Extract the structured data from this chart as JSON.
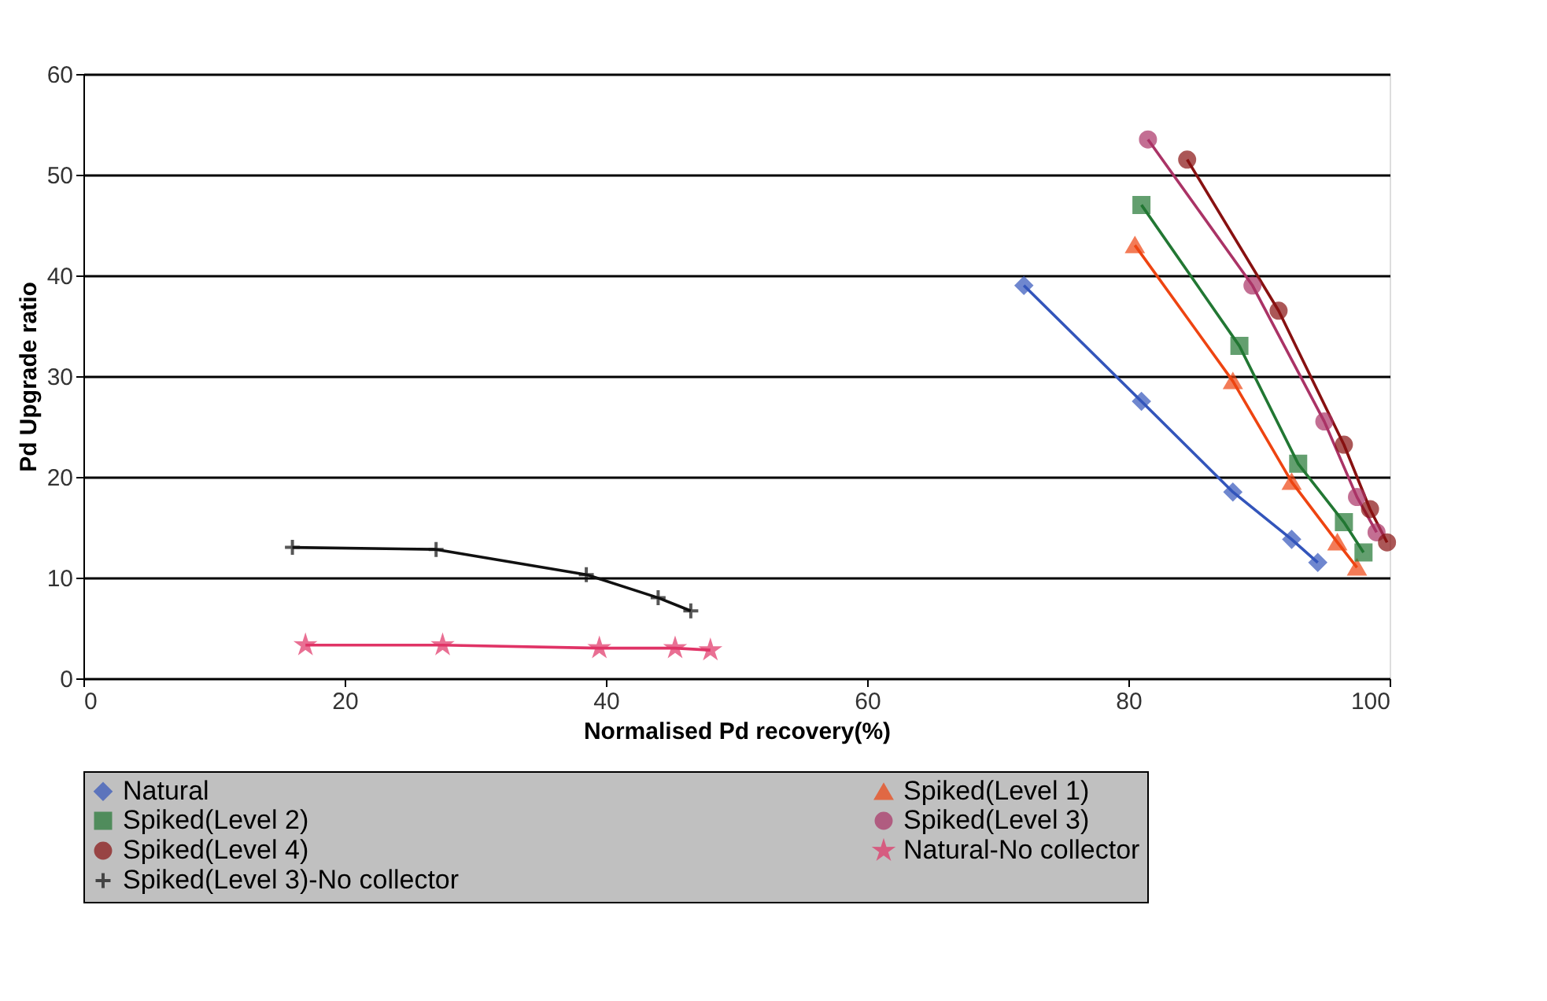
{
  "chart_data": {
    "type": "line",
    "xlabel": "Normalised Pd recovery(%)",
    "ylabel": "Pd Upgrade ratio",
    "xlim": [
      0,
      100
    ],
    "xticks": [
      0,
      20,
      40,
      60,
      80,
      100
    ],
    "ylim": [
      0,
      60
    ],
    "yticks": [
      0,
      10,
      20,
      30,
      40,
      50,
      60
    ],
    "grid": "y",
    "legend": "bottom",
    "line_style": "solid",
    "series": [
      {
        "name": "Natural",
        "color": "#3355bb",
        "marker": "diamond",
        "x": [
          72,
          81,
          88,
          92.5,
          94.5
        ],
        "values": [
          39,
          27.5,
          18.5,
          13.8,
          11.5
        ]
      },
      {
        "name": "Spiked(Level 1)",
        "color": "#ee4411",
        "marker": "triangle",
        "x": [
          80.5,
          88,
          92.5,
          96,
          97.5
        ],
        "values": [
          43,
          29.5,
          19.5,
          13.5,
          11
        ]
      },
      {
        "name": "Spiked(Level 2)",
        "color": "#227733",
        "marker": "square",
        "x": [
          81,
          88.5,
          93,
          96.5,
          98
        ],
        "values": [
          47,
          33,
          21.3,
          15.5,
          12.5
        ]
      },
      {
        "name": "Spiked(Level 3)",
        "color": "#aa3366",
        "marker": "circle",
        "x": [
          81.5,
          89.5,
          95,
          97.5,
          99
        ],
        "values": [
          53.5,
          39,
          25.5,
          18,
          14.5
        ]
      },
      {
        "name": "Spiked(Level 4)",
        "color": "#881111",
        "marker": "circle",
        "x": [
          84.5,
          91.5,
          96.5,
          98.5,
          99.8
        ],
        "values": [
          51.5,
          36.5,
          23.2,
          16.8,
          13.5
        ]
      },
      {
        "name": "Natural-No collector",
        "color": "#e03366",
        "marker": "star",
        "x": [
          17,
          27.5,
          39.5,
          45.3,
          48
        ],
        "values": [
          3.3,
          3.3,
          3,
          3,
          2.8
        ]
      },
      {
        "name": "Spiked(Level 3)-No collector",
        "color": "#111111",
        "marker": "cross",
        "x": [
          16,
          27,
          38.5,
          44,
          46.5
        ],
        "values": [
          13,
          12.8,
          10.3,
          8,
          6.7
        ]
      }
    ]
  }
}
